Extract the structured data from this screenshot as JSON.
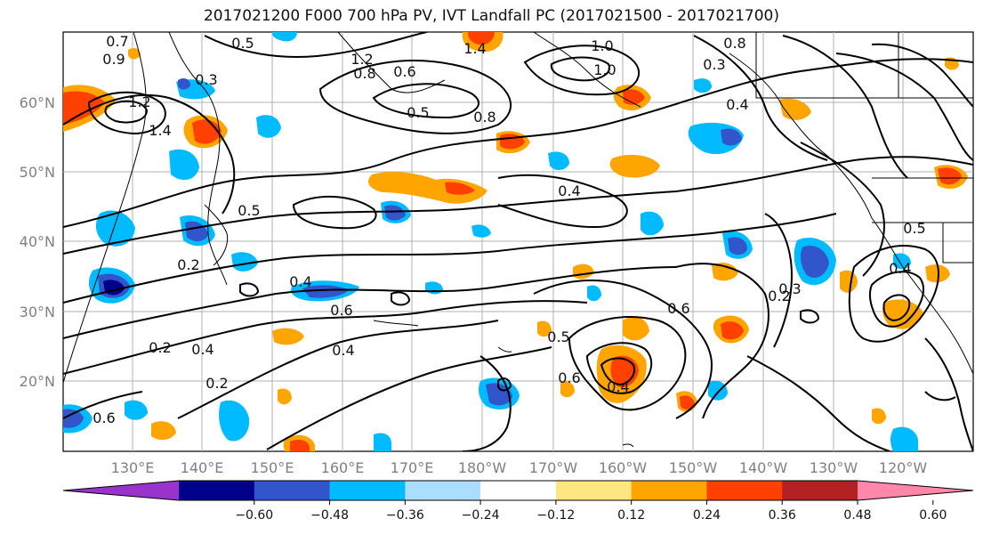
{
  "title": "2017021200 F000 700 hPa PV, IVT Landfall PC (2017021500 - 2017021700)",
  "lat_labels": [
    "60°N",
    "50°N",
    "40°N",
    "30°N",
    "20°N"
  ],
  "lon_labels": [
    "130°E",
    "140°E",
    "150°E",
    "160°E",
    "170°E",
    "180°W",
    "170°W",
    "160°W",
    "150°W",
    "140°W",
    "130°W",
    "120°W"
  ],
  "contour_labels": [
    "0.7",
    "0.5",
    "0.3",
    "0.9",
    "1.2",
    "1.4",
    "1.2",
    "0.8",
    "0.6",
    "0.5",
    "0.8",
    "1.4",
    "1.0",
    "1.0",
    "0.8",
    "0.4",
    "0.3",
    "0.4",
    "0.5",
    "0.2",
    "0.4",
    "0.6",
    "0.4",
    "0.2",
    "0.2",
    "0.4",
    "0.6",
    "0.5",
    "0.6",
    "0.4",
    "0.6",
    "0.3",
    "0.2",
    "0.4",
    "0.5"
  ],
  "colorbar": {
    "colors": [
      "#9933cc",
      "#000088",
      "#3355cc",
      "#00bbff",
      "#aaddff",
      "#ffffff",
      "#ffe680",
      "#ffa500",
      "#ff4000",
      "#b22222",
      "#ff88aa"
    ],
    "tick_labels": [
      "−0.60",
      "−0.48",
      "−0.36",
      "−0.24",
      "−0.12",
      "0.12",
      "0.24",
      "0.36",
      "0.48",
      "0.60"
    ]
  }
}
